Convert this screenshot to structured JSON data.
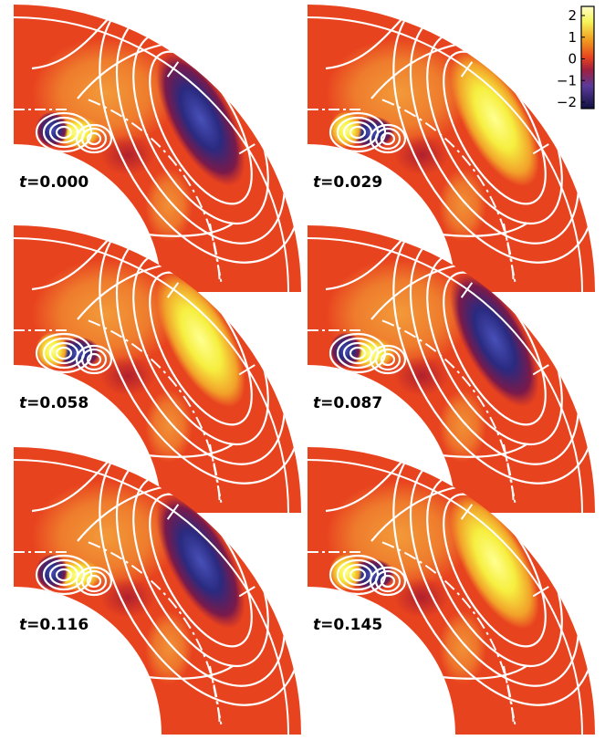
{
  "figure": {
    "panels": [
      {
        "time_label": "t=0.000",
        "t_prefix": "t",
        "t_value": "=0.000",
        "pattern": "A"
      },
      {
        "time_label": "t=0.029",
        "t_prefix": "t",
        "t_value": "=0.029",
        "pattern": "B"
      },
      {
        "time_label": "t=0.058",
        "t_prefix": "t",
        "t_value": "=0.058",
        "pattern": "B"
      },
      {
        "time_label": "t=0.087",
        "t_prefix": "t",
        "t_value": "=0.087",
        "pattern": "A"
      },
      {
        "time_label": "t=0.116",
        "t_prefix": "t",
        "t_value": "=0.116",
        "pattern": "A"
      },
      {
        "time_label": "t=0.145",
        "t_prefix": "t",
        "t_value": "=0.145",
        "pattern": "B"
      }
    ],
    "colorbar": {
      "ticks": [
        "2",
        "1",
        "0",
        "−1",
        "−2"
      ],
      "range": [
        -2,
        2
      ]
    },
    "colors": {
      "background_field": "#e8431f",
      "positive_max": "#f6f45a",
      "negative_max": "#1a1a6e",
      "contour": "#ffffff"
    }
  }
}
